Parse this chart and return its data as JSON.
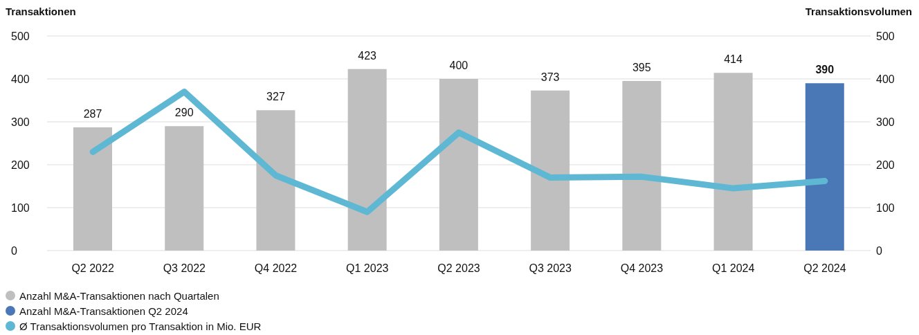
{
  "chart_data": {
    "type": "bar",
    "ylabel": "Transaktionen",
    "y2label": "Transaktionsvolumen",
    "categories": [
      "Q2 2022",
      "Q3 2022",
      "Q4 2022",
      "Q1 2023",
      "Q2 2023",
      "Q3 2023",
      "Q4 2023",
      "Q1 2024",
      "Q2 2024"
    ],
    "series": [
      {
        "name": "Anzahl M&A-Transaktionen nach Quartalen",
        "color": "#bebfbe",
        "values": [
          287,
          290,
          327,
          423,
          400,
          373,
          395,
          414,
          null
        ],
        "value_labels": [
          "287",
          "290",
          "327",
          "423",
          "400",
          "373",
          "395",
          "414",
          null
        ]
      },
      {
        "name": "Anzahl M&A-Transaktionen Q2 2024",
        "color": "#4a77b5",
        "values": [
          null,
          null,
          null,
          null,
          null,
          null,
          null,
          null,
          390
        ],
        "value_labels": [
          null,
          null,
          null,
          null,
          null,
          null,
          null,
          null,
          "390"
        ]
      },
      {
        "name": "Ø Transaktionsvolumen pro Transaktion in Mio. EUR",
        "type": "line",
        "axis": "y2",
        "color": "#5eb8d4",
        "values": [
          230,
          370,
          175,
          90,
          275,
          170,
          172,
          145,
          162
        ]
      }
    ],
    "stacked": true,
    "marker": "none",
    "line_style": "solid",
    "ylim": [
      0,
      500
    ],
    "yticks": [
      0,
      100,
      200,
      300,
      400,
      500
    ],
    "y2lim": [
      0,
      500
    ],
    "y2ticks": [
      0,
      100,
      200,
      300,
      400,
      500
    ],
    "grid": "y",
    "legend": "bottom left"
  }
}
